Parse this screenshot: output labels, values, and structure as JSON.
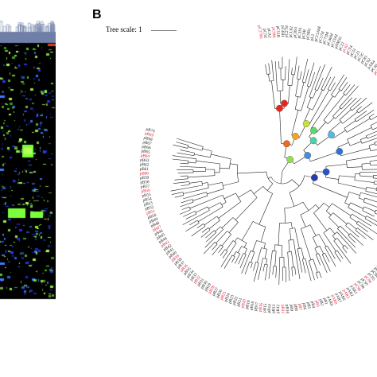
{
  "figure": {
    "panel_b_letter": "B",
    "tree_scale_label": "Tree scale: 1"
  },
  "heatmap": {
    "background": "#000000",
    "header_color": "#6f7fa8",
    "colors": [
      "#7cff3a",
      "#3a7bff",
      "#b6ff5a",
      "#2a3aff",
      "#e04020"
    ]
  },
  "tree": {
    "branch_color": "#222222",
    "label_colors": {
      "black": "#222222",
      "red": "#e8112d"
    },
    "node_colors": [
      "#e6261c",
      "#e6261c",
      "#f06a1c",
      "#f4a623",
      "#c9e234",
      "#8fe04a",
      "#5fd86b",
      "#4fd1a8",
      "#55b9e0",
      "#3f8fe0",
      "#2f6fd8",
      "#2a52c8",
      "#2a3aa8"
    ],
    "leaves": [
      {
        "label": "pC27R1",
        "red": true
      },
      {
        "label": "pC5U",
        "red": false
      },
      {
        "label": "pCA2",
        "red": false
      },
      {
        "label": "pC9M",
        "red": true
      },
      {
        "label": "pC11B",
        "red": false
      },
      {
        "label": "pC4H1",
        "red": false
      },
      {
        "label": "pC27H",
        "red": false
      },
      {
        "label": "pCL82",
        "red": false
      },
      {
        "label": "pC8S1",
        "red": false
      },
      {
        "label": "pC3S1",
        "red": false
      },
      {
        "label": "pC9B",
        "red": false
      },
      {
        "label": "pC9B1",
        "red": false
      },
      {
        "label": "pL2",
        "red": false
      },
      {
        "label": "pC15AM",
        "red": false
      },
      {
        "label": "pC17H",
        "red": false
      },
      {
        "label": "pC73M",
        "red": false
      },
      {
        "label": "pC46M",
        "red": false
      },
      {
        "label": "pC15AI",
        "red": false
      },
      {
        "label": "pNM32",
        "red": false
      },
      {
        "label": "pC22",
        "red": false
      },
      {
        "label": "pC63",
        "red": true
      },
      {
        "label": "pCT4",
        "red": false
      },
      {
        "label": "pC51",
        "red": false
      },
      {
        "label": "pC21",
        "red": false
      },
      {
        "label": "pC5C",
        "red": false
      },
      {
        "label": "pC85",
        "red": false
      },
      {
        "label": "pC62",
        "red": false
      },
      {
        "label": "pAR4",
        "red": false
      },
      {
        "label": "pC48",
        "red": false
      },
      {
        "label": "pC70",
        "red": true
      },
      {
        "label": "pC34",
        "red": false
      },
      {
        "label": "pC61",
        "red": true
      },
      {
        "label": "pC42",
        "red": false
      },
      {
        "label": "pC18H",
        "red": false
      },
      {
        "label": "pC32",
        "red": false
      },
      {
        "label": "pC16A",
        "red": true
      },
      {
        "label": "pC71",
        "red": false
      },
      {
        "label": "pC19",
        "red": false
      },
      {
        "label": "pC33",
        "red": false
      },
      {
        "label": "pC27",
        "red": false
      },
      {
        "label": "pC2",
        "red": false
      },
      {
        "label": "pAR5",
        "red": true
      },
      {
        "label": "pC43",
        "red": false
      },
      {
        "label": "pC76",
        "red": false
      },
      {
        "label": "pC44",
        "red": true
      },
      {
        "label": "pC45",
        "red": false
      },
      {
        "label": "pC47",
        "red": false
      },
      {
        "label": "pC52",
        "red": true
      },
      {
        "label": "pC53",
        "red": false
      },
      {
        "label": "pC54",
        "red": false
      },
      {
        "label": "pC55",
        "red": false
      },
      {
        "label": "pC56",
        "red": true
      },
      {
        "label": "pC57",
        "red": false
      },
      {
        "label": "pC58",
        "red": false
      },
      {
        "label": "pC59",
        "red": false
      },
      {
        "label": "pC60",
        "red": false
      },
      {
        "label": "pC64",
        "red": true
      },
      {
        "label": "pC65",
        "red": false
      },
      {
        "label": "pC66",
        "red": false
      },
      {
        "label": "pC67",
        "red": false
      },
      {
        "label": "pC68",
        "red": true
      },
      {
        "label": "pC69",
        "red": false
      },
      {
        "label": "pC72",
        "red": false
      },
      {
        "label": "pC74",
        "red": true
      },
      {
        "label": "pC75",
        "red": false
      },
      {
        "label": "pC77",
        "red": false
      },
      {
        "label": "pC78",
        "red": false
      },
      {
        "label": "pC79",
        "red": true
      },
      {
        "label": "pC80",
        "red": false
      },
      {
        "label": "pC81",
        "red": false
      },
      {
        "label": "pC82",
        "red": false
      },
      {
        "label": "pC83",
        "red": true
      },
      {
        "label": "pC84",
        "red": false
      },
      {
        "label": "pC86",
        "red": false
      },
      {
        "label": "pC87",
        "red": true
      },
      {
        "label": "pC88",
        "red": false
      },
      {
        "label": "pC89",
        "red": false
      },
      {
        "label": "pC90",
        "red": false
      },
      {
        "label": "pC91",
        "red": true
      },
      {
        "label": "pC92",
        "red": false
      },
      {
        "label": "pC93",
        "red": false
      },
      {
        "label": "pC94",
        "red": false
      },
      {
        "label": "pC95",
        "red": false
      },
      {
        "label": "pC96",
        "red": true
      },
      {
        "label": "pC97",
        "red": false
      },
      {
        "label": "pC98",
        "red": false
      },
      {
        "label": "pC99",
        "red": true
      },
      {
        "label": "pAR1",
        "red": false
      },
      {
        "label": "pAR2",
        "red": false
      },
      {
        "label": "pAR3",
        "red": true
      },
      {
        "label": "pAR6",
        "red": false
      },
      {
        "label": "pAR7",
        "red": false
      },
      {
        "label": "pAR8",
        "red": true
      },
      {
        "label": "pAR9",
        "red": false
      },
      {
        "label": "pB1",
        "red": false
      },
      {
        "label": "pB2",
        "red": false
      },
      {
        "label": "pB3",
        "red": true
      },
      {
        "label": "pB4",
        "red": false
      },
      {
        "label": "pB5",
        "red": false
      },
      {
        "label": "pB6",
        "red": false
      },
      {
        "label": "pB7",
        "red": true
      },
      {
        "label": "pB8",
        "red": false
      },
      {
        "label": "pB9",
        "red": false
      },
      {
        "label": "pB10",
        "red": false
      },
      {
        "label": "pB11",
        "red": true
      },
      {
        "label": "pB12",
        "red": false
      },
      {
        "label": "pB13",
        "red": false
      },
      {
        "label": "pB14",
        "red": false
      },
      {
        "label": "pB15",
        "red": false
      },
      {
        "label": "pB16",
        "red": true
      },
      {
        "label": "pB17",
        "red": false
      },
      {
        "label": "pB18",
        "red": false
      },
      {
        "label": "pB19",
        "red": false
      },
      {
        "label": "pB20",
        "red": true
      },
      {
        "label": "pB21",
        "red": false
      },
      {
        "label": "pB22",
        "red": false
      },
      {
        "label": "pB23",
        "red": false
      },
      {
        "label": "pB24",
        "red": false
      },
      {
        "label": "pB25",
        "red": true
      },
      {
        "label": "pB26",
        "red": false
      },
      {
        "label": "pB27",
        "red": false
      },
      {
        "label": "pB28",
        "red": true
      },
      {
        "label": "pB29",
        "red": false
      },
      {
        "label": "pB30",
        "red": false
      },
      {
        "label": "pB31",
        "red": false
      },
      {
        "label": "pB32",
        "red": true
      },
      {
        "label": "pB33",
        "red": false
      },
      {
        "label": "pB34",
        "red": false
      },
      {
        "label": "pB35",
        "red": false
      },
      {
        "label": "pB36",
        "red": true
      },
      {
        "label": "pB37",
        "red": false
      },
      {
        "label": "pB38",
        "red": false
      },
      {
        "label": "pB39",
        "red": true
      },
      {
        "label": "pB40",
        "red": false
      },
      {
        "label": "pB41",
        "red": false
      },
      {
        "label": "pB42",
        "red": false
      },
      {
        "label": "pB43",
        "red": true
      },
      {
        "label": "pB44",
        "red": false
      },
      {
        "label": "pB45",
        "red": false
      },
      {
        "label": "pB46",
        "red": false
      },
      {
        "label": "pB47",
        "red": true
      },
      {
        "label": "pB48",
        "red": false
      },
      {
        "label": "pB49",
        "red": false
      },
      {
        "label": "pB50",
        "red": false
      },
      {
        "label": "pB51",
        "red": true
      },
      {
        "label": "pB52",
        "red": false
      },
      {
        "label": "pB53",
        "red": false
      },
      {
        "label": "pB54",
        "red": false
      },
      {
        "label": "pB55",
        "red": false
      },
      {
        "label": "pB56",
        "red": true
      },
      {
        "label": "pB57",
        "red": false
      },
      {
        "label": "pB58",
        "red": false
      },
      {
        "label": "pB59",
        "red": false
      },
      {
        "label": "pB60",
        "red": true
      },
      {
        "label": "pB61",
        "red": false
      },
      {
        "label": "pB62",
        "red": false
      },
      {
        "label": "pB63",
        "red": false
      },
      {
        "label": "pB64",
        "red": true
      },
      {
        "label": "pB65",
        "red": false
      },
      {
        "label": "pB66",
        "red": false
      },
      {
        "label": "pB67",
        "red": false
      },
      {
        "label": "pB68",
        "red": false
      },
      {
        "label": "pB69",
        "red": true
      },
      {
        "label": "pB70",
        "red": false
      }
    ]
  }
}
